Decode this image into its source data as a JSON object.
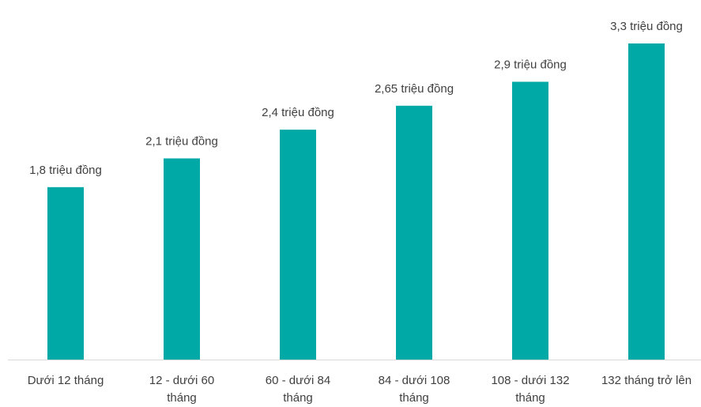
{
  "chart_data": {
    "type": "bar",
    "title": "",
    "xlabel": "",
    "ylabel": "",
    "categories": [
      [
        "Dưới 12 tháng"
      ],
      [
        "12 - dưới 60",
        "tháng"
      ],
      [
        "60 - dưới 84",
        "tháng"
      ],
      [
        "84 - dưới 108",
        "tháng"
      ],
      [
        "108 - dưới 132",
        "tháng"
      ],
      [
        "132 tháng trở lên"
      ]
    ],
    "values": [
      1.8,
      2.1,
      2.4,
      2.65,
      2.9,
      3.3
    ],
    "data_labels": [
      "1,8 triệu đồng",
      "2,1 triệu đồng",
      "2,4 triệu đồng",
      "2,65 triệu đồng",
      "2,9 triệu đồng",
      "3,3 triệu đồng"
    ],
    "ylim": [
      0,
      3.3
    ],
    "grid": false,
    "legend": "none",
    "colors": {
      "bar": "#00A9A5",
      "axis": "#D9D9D9",
      "text": "#404040"
    }
  }
}
